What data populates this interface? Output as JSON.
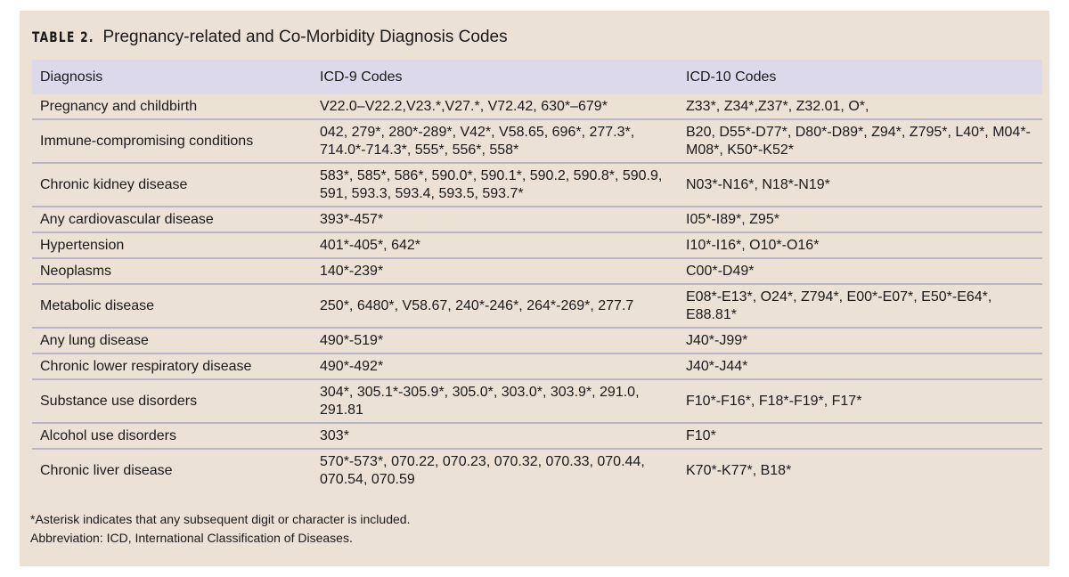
{
  "title": {
    "label": "TABLE 2.",
    "text": "Pregnancy-related and Co-Morbidity Diagnosis Codes"
  },
  "table": {
    "headers": [
      "Diagnosis",
      "ICD-9 Codes",
      "ICD-10 Codes"
    ],
    "rows": [
      [
        "Pregnancy and childbirth",
        "V22.0–V22.2,V23.*,V27.*, V72.42, 630*–679*",
        "Z33*, Z34*,Z37*, Z32.01, O*,"
      ],
      [
        "Immune-compromising conditions",
        "042, 279*, 280*-289*, V42*, V58.65, 696*, 277.3*, 714.0*-714.3*, 555*, 556*, 558*",
        "B20, D55*-D77*, D80*-D89*, Z94*, Z795*, L40*, M04*-M08*, K50*-K52*"
      ],
      [
        "Chronic kidney disease",
        "583*, 585*, 586*, 590.0*, 590.1*, 590.2, 590.8*, 590.9, 591, 593.3, 593.4, 593.5, 593.7*",
        "N03*-N16*, N18*-N19*"
      ],
      [
        "Any cardiovascular disease",
        "393*-457*",
        "I05*-I89*, Z95*"
      ],
      [
        "Hypertension",
        "401*-405*, 642*",
        "I10*-I16*, O10*-O16*"
      ],
      [
        "Neoplasms",
        "140*-239*",
        "C00*-D49*"
      ],
      [
        "Metabolic disease",
        "250*, 6480*, V58.67, 240*-246*, 264*-269*, 277.7",
        "E08*-E13*, O24*, Z794*, E00*-E07*, E50*-E64*, E88.81*"
      ],
      [
        "Any lung disease",
        "490*-519*",
        "J40*-J99*"
      ],
      [
        "Chronic lower respiratory disease",
        "490*-492*",
        "J40*-J44*"
      ],
      [
        "Substance use disorders",
        "304*, 305.1*-305.9*, 305.0*, 303.0*, 303.9*, 291.0, 291.81",
        "F10*-F16*, F18*-F19*, F17*"
      ],
      [
        "Alcohol use disorders",
        "303*",
        "F10*"
      ],
      [
        "Chronic liver disease",
        "570*-573*, 070.22, 070.23, 070.32, 070.33, 070.44, 070.54, 070.59",
        "K70*-K77*, B18*"
      ]
    ]
  },
  "footnotes": [
    "*Asterisk indicates that any subsequent digit or character is included.",
    "Abbreviation: ICD, International Classification of Diseases."
  ],
  "colors": {
    "panel": "#ebe1d5",
    "header": "#dcd9ea",
    "divider": "#bab5c6"
  }
}
